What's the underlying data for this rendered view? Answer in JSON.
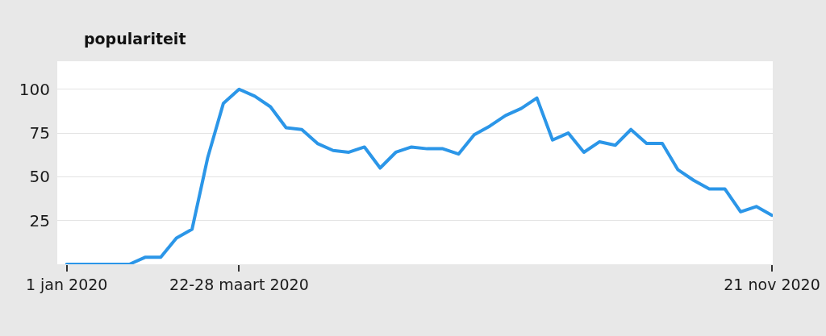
{
  "chart_data": {
    "type": "line",
    "title": "populariteit",
    "categories": [
      "1 jan 2020",
      null,
      null,
      null,
      null,
      null,
      null,
      null,
      null,
      null,
      null,
      "22-28 maart 2020",
      null,
      null,
      null,
      null,
      null,
      null,
      null,
      null,
      null,
      null,
      null,
      null,
      null,
      null,
      null,
      null,
      null,
      null,
      null,
      null,
      null,
      null,
      null,
      null,
      null,
      null,
      null,
      null,
      null,
      null,
      null,
      null,
      null,
      "21 nov 2020"
    ],
    "values": [
      0,
      0,
      0,
      0,
      0,
      4,
      4,
      15,
      20,
      61,
      92,
      100,
      96,
      90,
      78,
      77,
      69,
      65,
      64,
      67,
      55,
      64,
      67,
      66,
      66,
      63,
      74,
      79,
      85,
      89,
      95,
      71,
      75,
      64,
      70,
      68,
      77,
      69,
      69,
      54,
      48,
      43,
      43,
      30,
      33,
      28
    ],
    "color": "#2b96e8",
    "ylim": [
      0,
      116
    ],
    "yticks": [
      25,
      50,
      75,
      100
    ],
    "grid": "y"
  }
}
